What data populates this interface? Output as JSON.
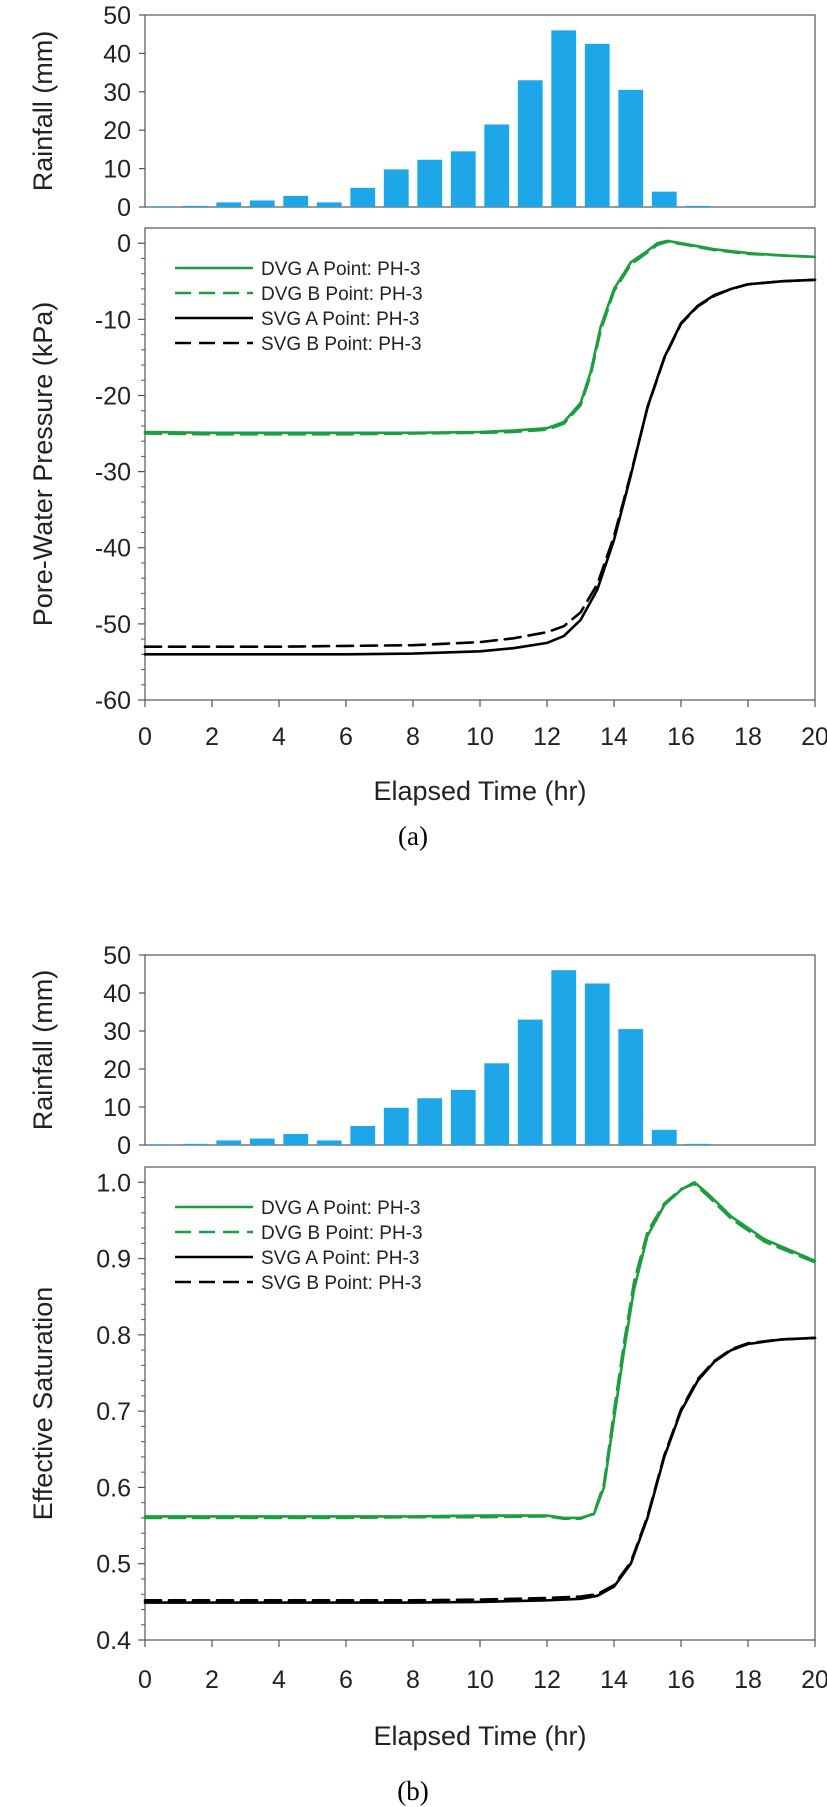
{
  "chart_data": [
    {
      "type": "bar",
      "panel": "(a)",
      "ylabel": "Rainfall (mm)",
      "ylim": [
        0,
        50
      ],
      "yticks": [
        0,
        10,
        20,
        30,
        40,
        50
      ],
      "x": [
        1,
        2,
        3,
        4,
        5,
        6,
        7,
        8,
        9,
        10,
        11,
        12,
        13,
        14,
        15,
        16,
        17
      ],
      "values": [
        0.2,
        0.3,
        1.2,
        1.7,
        2.9,
        1.2,
        5.0,
        9.8,
        12.3,
        14.5,
        21.5,
        33.0,
        46.0,
        42.5,
        30.5,
        4.0,
        0.3
      ],
      "color": "#1ea7e8"
    },
    {
      "type": "line",
      "panel": "(a)",
      "xlabel": "Elapsed Time (hr)",
      "ylabel": "Pore-Water Pressure (kPa)",
      "xlim": [
        0,
        20
      ],
      "ylim": [
        -60,
        2
      ],
      "xticks": [
        0,
        2,
        4,
        6,
        8,
        10,
        12,
        14,
        16,
        18,
        20
      ],
      "yticks": [
        0,
        -10,
        -20,
        -30,
        -40,
        -50,
        -60
      ],
      "legend_position": "top-left",
      "series": [
        {
          "name": "DVG A Point: PH-3",
          "color": "#1b9e3e",
          "dash": "solid",
          "x": [
            0,
            2,
            4,
            6,
            8,
            10,
            11,
            12,
            12.5,
            13,
            13.3,
            13.6,
            14,
            14.5,
            15,
            15.3,
            15.6,
            16,
            17,
            18,
            19,
            20
          ],
          "y": [
            -24.8,
            -24.9,
            -24.9,
            -24.9,
            -24.9,
            -24.8,
            -24.6,
            -24.3,
            -23.5,
            -21.0,
            -17.0,
            -11.0,
            -6.0,
            -2.5,
            -1.0,
            0.0,
            0.3,
            0.0,
            -0.8,
            -1.3,
            -1.6,
            -1.8
          ]
        },
        {
          "name": "DVG B Point: PH-3",
          "color": "#1b9e3e",
          "dash": "dashed",
          "x": [
            0,
            2,
            4,
            6,
            8,
            10,
            11,
            12,
            12.5,
            13,
            13.3,
            13.6,
            14,
            14.5,
            15,
            15.3,
            15.6,
            16,
            17,
            18,
            19,
            20
          ],
          "y": [
            -25.0,
            -25.1,
            -25.1,
            -25.1,
            -25.0,
            -24.9,
            -24.8,
            -24.5,
            -23.7,
            -21.3,
            -17.4,
            -11.5,
            -6.3,
            -2.8,
            -1.2,
            -0.2,
            0.2,
            -0.1,
            -0.9,
            -1.4,
            -1.6,
            -1.8
          ]
        },
        {
          "name": "SVG A Point: PH-3",
          "color": "#000000",
          "dash": "solid",
          "x": [
            0,
            2,
            4,
            6,
            8,
            10,
            11,
            12,
            12.5,
            13,
            13.5,
            14,
            14.5,
            15,
            15.5,
            16,
            16.5,
            17,
            17.5,
            18,
            19,
            20
          ],
          "y": [
            -54.0,
            -54.0,
            -54.0,
            -54.0,
            -53.9,
            -53.6,
            -53.2,
            -52.5,
            -51.6,
            -49.5,
            -45.5,
            -39.0,
            -30.5,
            -21.5,
            -15.0,
            -10.5,
            -8.2,
            -6.8,
            -6.0,
            -5.4,
            -5.0,
            -4.8
          ]
        },
        {
          "name": "SVG B Point: PH-3",
          "color": "#000000",
          "dash": "dashed",
          "x": [
            0,
            2,
            4,
            6,
            8,
            10,
            11,
            12,
            12.5,
            13,
            13.5,
            14,
            14.5,
            15,
            15.5,
            16,
            16.5,
            17,
            17.5,
            18,
            19,
            20
          ],
          "y": [
            -53.0,
            -53.0,
            -53.0,
            -52.9,
            -52.8,
            -52.4,
            -51.9,
            -51.1,
            -50.3,
            -48.5,
            -44.8,
            -38.5,
            -30.3,
            -21.6,
            -15.1,
            -10.6,
            -8.3,
            -6.9,
            -6.0,
            -5.4,
            -5.0,
            -4.8
          ]
        }
      ]
    },
    {
      "type": "bar",
      "panel": "(b)",
      "ylabel": "Rainfall (mm)",
      "ylim": [
        0,
        50
      ],
      "yticks": [
        0,
        10,
        20,
        30,
        40,
        50
      ],
      "x": [
        1,
        2,
        3,
        4,
        5,
        6,
        7,
        8,
        9,
        10,
        11,
        12,
        13,
        14,
        15,
        16,
        17
      ],
      "values": [
        0.2,
        0.3,
        1.2,
        1.7,
        2.9,
        1.2,
        5.0,
        9.8,
        12.3,
        14.5,
        21.5,
        33.0,
        46.0,
        42.5,
        30.5,
        4.0,
        0.3
      ],
      "color": "#1ea7e8"
    },
    {
      "type": "line",
      "panel": "(b)",
      "xlabel": "Elapsed Time (hr)",
      "ylabel": "Effective Saturation",
      "xlim": [
        0,
        20
      ],
      "ylim": [
        0.4,
        1.02
      ],
      "xticks": [
        0,
        2,
        4,
        6,
        8,
        10,
        12,
        14,
        16,
        18,
        20
      ],
      "yticks": [
        0.4,
        0.5,
        0.6,
        0.7,
        0.8,
        0.9,
        1.0
      ],
      "ytick_labels": [
        "0.4",
        "0.5",
        "0.6",
        "0.7",
        "0.8",
        "0.9",
        "1.0"
      ],
      "legend_position": "top-left",
      "series": [
        {
          "name": "DVG A Point: PH-3",
          "color": "#1b9e3e",
          "dash": "solid",
          "x": [
            0,
            2,
            4,
            6,
            8,
            10,
            12,
            12.5,
            13,
            13.4,
            13.7,
            14,
            14.3,
            14.6,
            15,
            15.5,
            16,
            16.4,
            16.8,
            17.5,
            18.5,
            20
          ],
          "y": [
            0.562,
            0.562,
            0.562,
            0.562,
            0.562,
            0.563,
            0.563,
            0.56,
            0.56,
            0.565,
            0.6,
            0.69,
            0.78,
            0.86,
            0.93,
            0.97,
            0.99,
            1.0,
            0.985,
            0.955,
            0.925,
            0.897
          ]
        },
        {
          "name": "DVG B Point: PH-3",
          "color": "#1b9e3e",
          "dash": "dashed",
          "x": [
            0,
            2,
            4,
            6,
            8,
            10,
            12,
            12.5,
            13,
            13.4,
            13.7,
            14,
            14.3,
            14.6,
            15,
            15.5,
            16,
            16.4,
            16.8,
            17.5,
            18.5,
            20
          ],
          "y": [
            0.56,
            0.56,
            0.56,
            0.56,
            0.561,
            0.561,
            0.562,
            0.559,
            0.559,
            0.566,
            0.605,
            0.7,
            0.79,
            0.87,
            0.935,
            0.972,
            0.991,
            0.998,
            0.982,
            0.952,
            0.922,
            0.895
          ]
        },
        {
          "name": "SVG A Point: PH-3",
          "color": "#000000",
          "dash": "solid",
          "x": [
            0,
            2,
            4,
            6,
            8,
            10,
            12,
            13,
            13.5,
            14,
            14.5,
            15,
            15.5,
            16,
            16.5,
            17,
            17.5,
            18,
            19,
            20
          ],
          "y": [
            0.449,
            0.449,
            0.449,
            0.449,
            0.449,
            0.45,
            0.452,
            0.454,
            0.458,
            0.47,
            0.5,
            0.56,
            0.64,
            0.7,
            0.74,
            0.765,
            0.78,
            0.788,
            0.794,
            0.796
          ]
        },
        {
          "name": "SVG B Point: PH-3",
          "color": "#000000",
          "dash": "dashed",
          "x": [
            0,
            2,
            4,
            6,
            8,
            10,
            12,
            13,
            13.5,
            14,
            14.5,
            15,
            15.5,
            16,
            16.5,
            17,
            17.5,
            18,
            19,
            20
          ],
          "y": [
            0.452,
            0.452,
            0.452,
            0.452,
            0.452,
            0.453,
            0.455,
            0.457,
            0.46,
            0.472,
            0.502,
            0.562,
            0.642,
            0.702,
            0.742,
            0.766,
            0.781,
            0.789,
            0.794,
            0.796
          ]
        }
      ]
    }
  ],
  "captions": {
    "a": "(a)",
    "b": "(b)"
  }
}
